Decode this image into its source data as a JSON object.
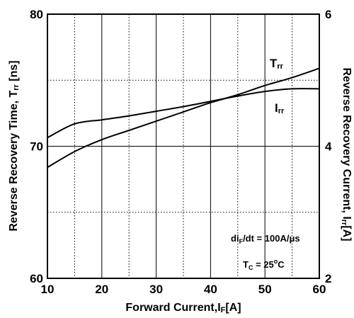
{
  "chart_data": {
    "type": "line",
    "xlabel": {
      "main": "Forward Current,I",
      "sub": "F",
      "unit": "[A]"
    },
    "ylabel_left": {
      "main": "Reverse Recovery Time, T",
      "sub": "rr",
      "unit": " [ns]"
    },
    "ylabel_right": {
      "main": "Reverse Recovery Current, I",
      "sub": "rr",
      "unit": "[A]"
    },
    "x_range": [
      10,
      60
    ],
    "y_left_range": [
      60,
      80
    ],
    "y_right_range": [
      2,
      6
    ],
    "x_ticks": [
      "10",
      "20",
      "30",
      "40",
      "50",
      "60"
    ],
    "y_left_ticks": [
      "60",
      "70",
      "80"
    ],
    "y_right_ticks": [
      "2",
      "4",
      "6"
    ],
    "grid": "dotted vertical lines every 5 A; dotted horizontal lines at 65 and 75 ns; solid lines at each labeled tick",
    "series": [
      {
        "name": "Trr",
        "label_main": "T",
        "label_sub": "rr",
        "axis": "left",
        "x": [
          10,
          15,
          20,
          25,
          30,
          35,
          40,
          45,
          50,
          55,
          60
        ],
        "y": [
          68.4,
          69.6,
          70.5,
          71.2,
          71.9,
          72.6,
          73.3,
          73.9,
          74.6,
          75.2,
          75.9
        ]
      },
      {
        "name": "Irr",
        "label_main": "I",
        "label_sub": "rr",
        "axis": "right",
        "x": [
          10,
          15,
          20,
          25,
          30,
          35,
          40,
          45,
          50,
          55,
          60
        ],
        "y": [
          4.13,
          4.34,
          4.4,
          4.46,
          4.53,
          4.6,
          4.68,
          4.76,
          4.83,
          4.87,
          4.87
        ]
      }
    ],
    "annotations": [
      {
        "parts": [
          "di",
          "F",
          "/dt = 100A/μs"
        ]
      },
      {
        "parts": [
          "T",
          "C",
          " = 25",
          "o",
          "C"
        ]
      }
    ]
  }
}
